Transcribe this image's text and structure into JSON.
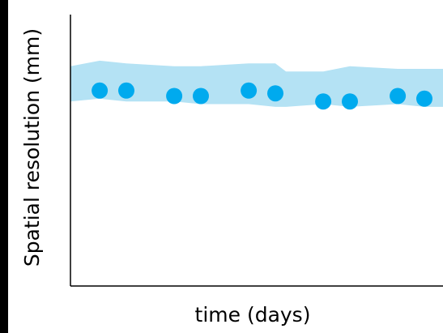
{
  "chart_data": {
    "type": "scatter",
    "title": "",
    "xlabel": "time (days)",
    "ylabel": "Spatial resolution (mm)",
    "xlim": [
      0,
      14
    ],
    "ylim": [
      0,
      10
    ],
    "grid": false,
    "points": {
      "x": [
        1.1,
        2.1,
        3.9,
        4.9,
        6.7,
        7.7,
        9.5,
        10.5,
        12.3,
        13.3
      ],
      "y": [
        7.2,
        7.2,
        7.0,
        7.0,
        7.2,
        7.1,
        6.8,
        6.8,
        7.0,
        6.9
      ]
    },
    "band": {
      "x": [
        0,
        1.1,
        2.1,
        3.9,
        4.9,
        6.7,
        7.7,
        8.1,
        9.5,
        10.5,
        12.3,
        13.3,
        14
      ],
      "upper": [
        8.1,
        8.3,
        8.2,
        8.1,
        8.1,
        8.2,
        8.2,
        7.9,
        7.9,
        8.1,
        8.0,
        8.0,
        8.0
      ],
      "lower": [
        6.8,
        6.9,
        6.8,
        6.8,
        6.7,
        6.7,
        6.6,
        6.6,
        6.7,
        6.6,
        6.7,
        6.6,
        6.6
      ]
    },
    "colors": {
      "points": "#00aaee",
      "band": "#b4e2f4",
      "axis": "#000000"
    }
  }
}
